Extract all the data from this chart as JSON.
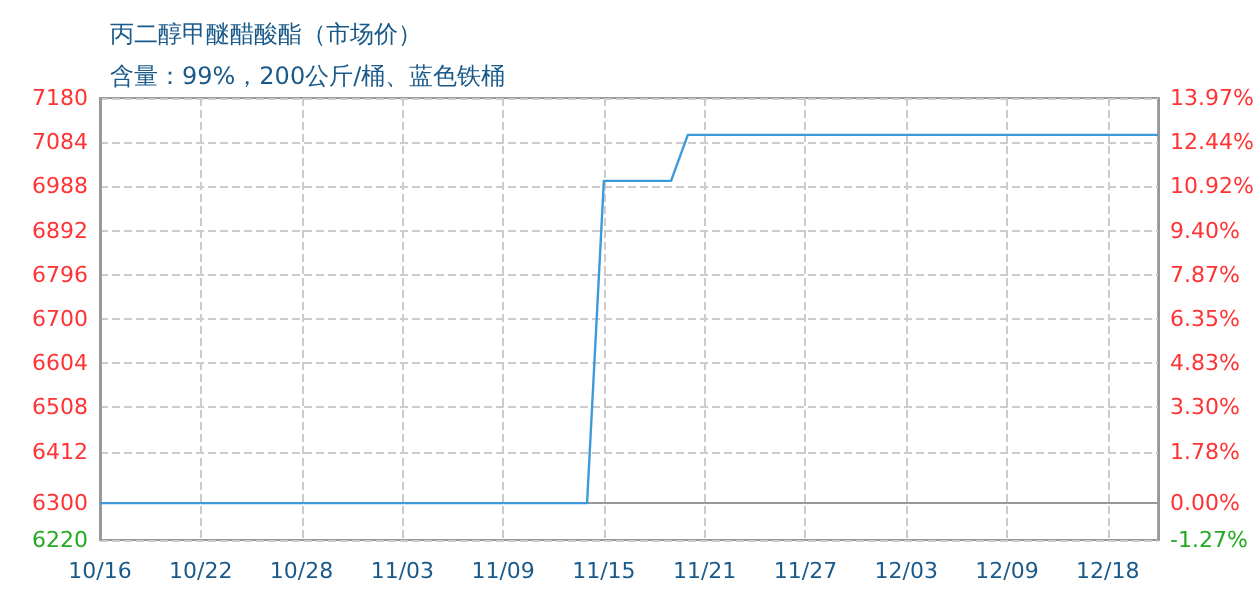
{
  "chart_data": {
    "type": "line",
    "title": "丙二醇甲醚醋酸酯（市场价）",
    "subtitle": "含量：99%，200公斤/桶、蓝色铁桶",
    "categories": [
      "10/16",
      null,
      null,
      null,
      null,
      null,
      "10/22",
      null,
      null,
      null,
      null,
      null,
      "10/28",
      null,
      null,
      null,
      null,
      null,
      "11/03",
      null,
      null,
      null,
      null,
      null,
      "11/09",
      null,
      null,
      null,
      null,
      null,
      "11/15",
      null,
      null,
      null,
      null,
      null,
      "11/21",
      null,
      null,
      null,
      null,
      null,
      "11/27",
      null,
      null,
      null,
      null,
      null,
      "12/03",
      null,
      null,
      null,
      null,
      null,
      "12/09",
      null,
      null,
      null,
      null,
      null,
      "12/18",
      null,
      null,
      null
    ],
    "series": [
      {
        "color": "#3d9ad8",
        "values": [
          6300,
          6300,
          6300,
          6300,
          6300,
          6300,
          6300,
          6300,
          6300,
          6300,
          6300,
          6300,
          6300,
          6300,
          6300,
          6300,
          6300,
          6300,
          6300,
          6300,
          6300,
          6300,
          6300,
          6300,
          6300,
          6300,
          6300,
          6300,
          6300,
          6300,
          7000,
          7000,
          7000,
          7000,
          7000,
          7100,
          7100,
          7100,
          7100,
          7100,
          7100,
          7100,
          7100,
          7100,
          7100,
          7100,
          7100,
          7100,
          7100,
          7100,
          7100,
          7100,
          7100,
          7100,
          7100,
          7100,
          7100,
          7100,
          7100,
          7100,
          7100,
          7100,
          7100,
          7100
        ]
      }
    ],
    "ylim": [
      6220,
      7180
    ],
    "yticks": [
      6220,
      6300,
      6412,
      6508,
      6604,
      6700,
      6796,
      6892,
      6988,
      7084,
      7180
    ],
    "y2lim": [
      -1.27,
      13.97
    ],
    "y2ticks": [
      {
        "value": -1.27,
        "label": "-1.27%"
      },
      {
        "value": 0,
        "label": "0.00%"
      },
      {
        "value": 1.78,
        "label": "1.78%"
      },
      {
        "value": 3.3,
        "label": "3.30%"
      },
      {
        "value": 4.83,
        "label": "4.83%"
      },
      {
        "value": 6.35,
        "label": "6.35%"
      },
      {
        "value": 7.87,
        "label": "7.87%"
      },
      {
        "value": 9.4,
        "label": "9.40%"
      },
      {
        "value": 10.92,
        "label": "10.92%"
      },
      {
        "value": 12.44,
        "label": "12.44%"
      },
      {
        "value": 13.97,
        "label": "13.97%"
      }
    ],
    "grid": true,
    "marker": "none",
    "line_style": "solid"
  }
}
